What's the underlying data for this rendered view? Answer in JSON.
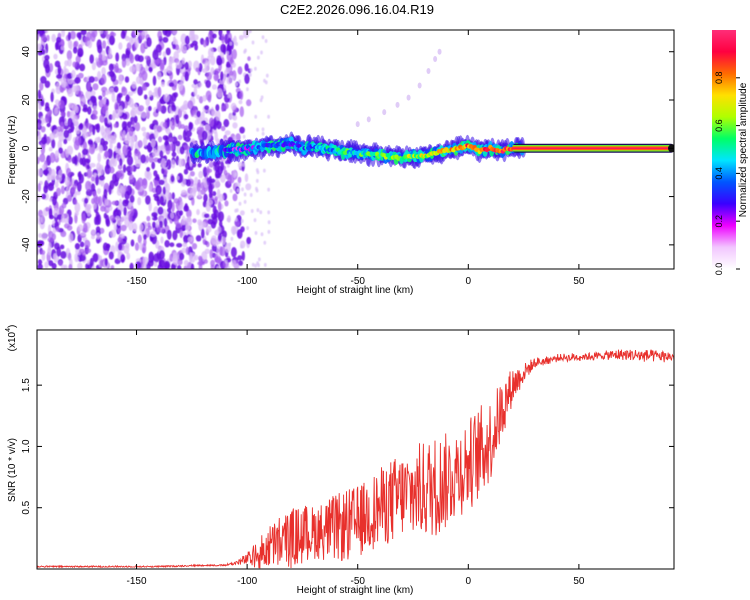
{
  "figure_title": "C2E2.2026.096.16.04.R19",
  "colors": {
    "snr_line": "#e8302c",
    "axis": "#000000",
    "background": "#ffffff",
    "scatter_purple": "#7a1fe6"
  },
  "chart_data": [
    {
      "type": "heatmap",
      "title": "C2E2.2026.096.16.04.R19",
      "xlabel": "Height of straight line (km)",
      "ylabel": "Frequency (Hz)",
      "xlim": [
        -195,
        93
      ],
      "ylim": [
        -50,
        49
      ],
      "xticks": [
        -150,
        -100,
        -50,
        0,
        50
      ],
      "yticks": [
        -40,
        -20,
        0,
        20,
        40
      ],
      "colorbar": {
        "label": "Normalized spectral amplitude",
        "range": [
          0,
          1
        ],
        "ticks": [
          "0.0",
          "0.2",
          "0.4",
          "0.6",
          "0.8"
        ],
        "tick_values": [
          0.0,
          0.2,
          0.4,
          0.6,
          0.8
        ],
        "colormap": [
          "#ffffff",
          "#f2c6ff",
          "#ee00ff",
          "#3a00ff",
          "#0055ff",
          "#00e5ff",
          "#00ff66",
          "#b0ff00",
          "#ffe000",
          "#ff6a00",
          "#ff0040",
          "#ff2d78"
        ]
      },
      "ridge": {
        "description_points_x": [
          -125,
          -110,
          -100,
          -90,
          -80,
          -75,
          -70,
          -60,
          -50,
          -40,
          -30,
          -20,
          -15,
          -10,
          -5,
          0,
          5,
          10,
          15,
          20,
          30,
          50,
          70,
          93
        ],
        "frequency_hz": [
          -2,
          -1,
          0,
          1,
          2,
          0,
          1,
          -1,
          -2,
          -3,
          -4,
          -3,
          -2,
          -1,
          0,
          1,
          -1,
          0,
          -1,
          0,
          0,
          0,
          0,
          0
        ],
        "amplitude": [
          0.15,
          0.25,
          0.3,
          0.35,
          0.35,
          0.4,
          0.4,
          0.45,
          0.5,
          0.55,
          0.6,
          0.65,
          0.7,
          0.7,
          0.75,
          0.8,
          0.8,
          0.85,
          0.85,
          0.9,
          0.95,
          0.95,
          0.95,
          0.95
        ]
      },
      "noise_region_x": [
        -195,
        -110
      ],
      "faint_trail_points": [
        [
          -50,
          10
        ],
        [
          -45,
          12
        ],
        [
          -38,
          15
        ],
        [
          -32,
          18
        ],
        [
          -27,
          21
        ],
        [
          -22,
          26
        ],
        [
          -18,
          32
        ],
        [
          -15,
          37
        ],
        [
          -13,
          40
        ]
      ]
    },
    {
      "type": "line",
      "xlabel": "Height of straight line (km)",
      "ylabel": "SNR (10 * v/v)",
      "scale_label": "(x10",
      "scale_exponent": "4",
      "xlim": [
        -195,
        93
      ],
      "ylim": [
        0,
        1.95
      ],
      "xticks": [
        -150,
        -100,
        -50,
        0,
        50
      ],
      "yticks": [
        0.5,
        1.0,
        1.5
      ],
      "ytick_labels": [
        "0.5",
        "1.0",
        "1.5"
      ],
      "series": [
        {
          "name": "SNR",
          "x": [
            -195,
            -180,
            -160,
            -140,
            -120,
            -110,
            -105,
            -100,
            -95,
            -90,
            -85,
            -80,
            -75,
            -70,
            -65,
            -60,
            -55,
            -50,
            -45,
            -40,
            -35,
            -30,
            -25,
            -20,
            -15,
            -10,
            -5,
            0,
            5,
            10,
            15,
            20,
            25,
            30,
            40,
            50,
            60,
            70,
            80,
            93
          ],
          "y": [
            0.02,
            0.02,
            0.02,
            0.02,
            0.03,
            0.03,
            0.05,
            0.08,
            0.12,
            0.18,
            0.22,
            0.25,
            0.28,
            0.3,
            0.32,
            0.33,
            0.35,
            0.38,
            0.45,
            0.5,
            0.55,
            0.6,
            0.62,
            0.65,
            0.68,
            0.72,
            0.8,
            0.85,
            0.95,
            1.05,
            1.3,
            1.5,
            1.6,
            1.68,
            1.72,
            1.73,
            1.74,
            1.75,
            1.74,
            1.73
          ],
          "envelope_amplitude": [
            0,
            0,
            0,
            0,
            0,
            0,
            0.02,
            0.05,
            0.12,
            0.18,
            0.22,
            0.25,
            0.25,
            0.22,
            0.25,
            0.28,
            0.3,
            0.3,
            0.3,
            0.32,
            0.35,
            0.35,
            0.38,
            0.4,
            0.42,
            0.4,
            0.38,
            0.38,
            0.38,
            0.35,
            0.25,
            0.15,
            0.08,
            0.04,
            0.03,
            0.03,
            0.03,
            0.05,
            0.05,
            0.04
          ]
        }
      ]
    }
  ]
}
